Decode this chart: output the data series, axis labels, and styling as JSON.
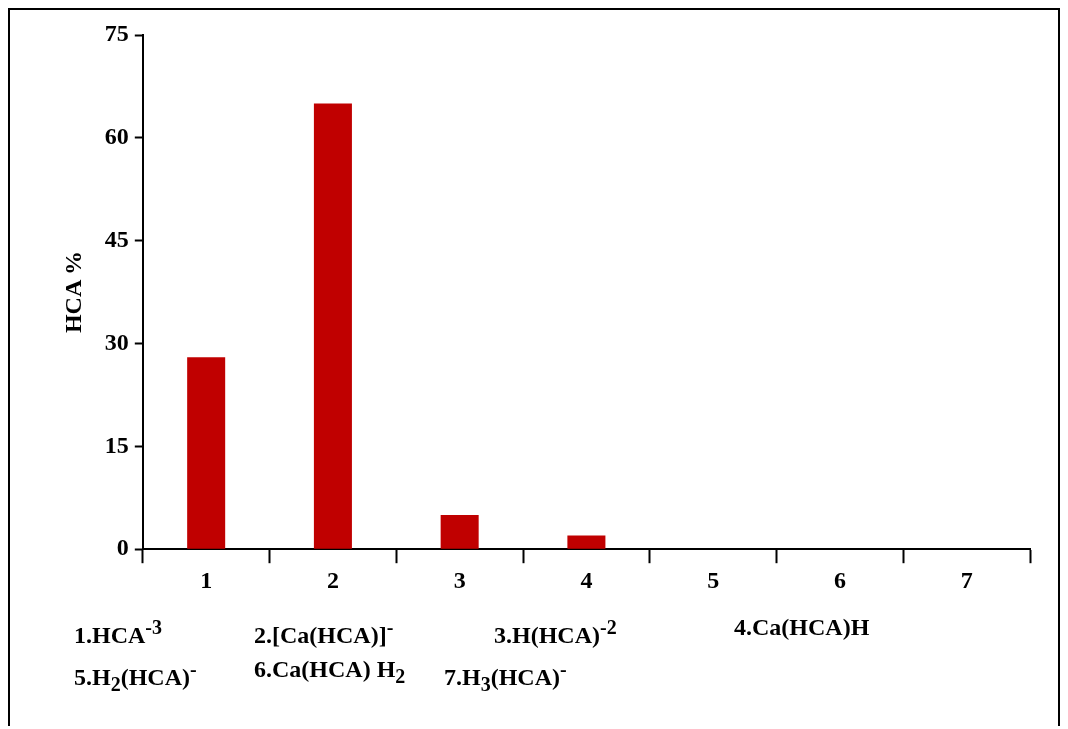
{
  "chart_data": {
    "type": "bar",
    "ylabel": "HCA %",
    "categories": [
      "1",
      "2",
      "3",
      "4",
      "5",
      "6",
      "7"
    ],
    "values": [
      28,
      65,
      5,
      2,
      0,
      0,
      0
    ],
    "color": "#c00000",
    "ylim": [
      0,
      75
    ],
    "yticks": [
      0,
      15,
      30,
      45,
      60,
      75
    ],
    "grid": false,
    "legend": false,
    "annotations": [
      "1.HCA$^{-3}$",
      "2.[Ca(HCA)]$^{-}$",
      "3.H(HCA)$^{-2}$",
      "4.Ca(HCA)H",
      "5.H$_{2}$(HCA)$^{-}$",
      "6.Ca(HCA) H$_{2}$",
      "7.H$_{3}$(HCA)$^{-}$"
    ]
  }
}
